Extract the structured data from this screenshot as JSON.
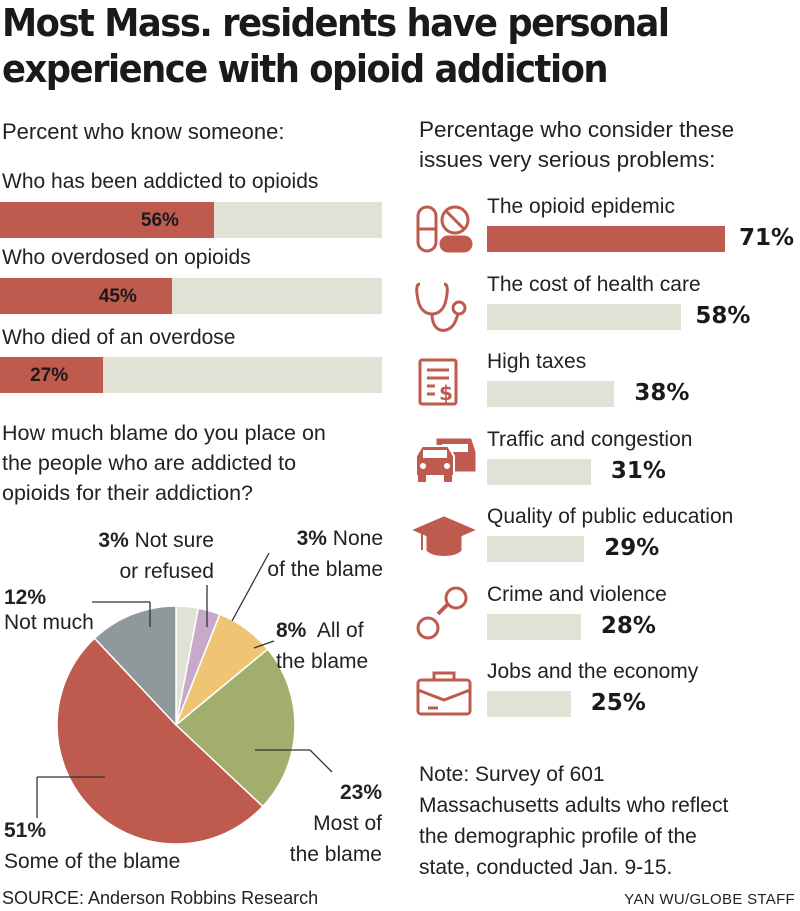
{
  "title_line1": "Most Mass. residents have personal",
  "title_line2": "experience with opioid addiction",
  "know": {
    "heading": "Percent who know someone:",
    "items": [
      {
        "label": "Who has been addicted to opioids",
        "value": 56,
        "value_label": "56%"
      },
      {
        "label": "Who overdosed on opioids",
        "value": 45,
        "value_label": "45%"
      },
      {
        "label": "Who died of an overdose",
        "value": 27,
        "value_label": "27%"
      }
    ]
  },
  "issues": {
    "heading_line1": "Percentage who consider these",
    "heading_line2": "issues very serious problems:",
    "items": [
      {
        "label": "The opioid epidemic",
        "value": 71,
        "value_label": "71%",
        "icon": "pills-icon",
        "highlight": true
      },
      {
        "label": "The cost of health care",
        "value": 58,
        "value_label": "58%",
        "icon": "stethoscope-icon",
        "highlight": false
      },
      {
        "label": "High taxes",
        "value": 38,
        "value_label": "38%",
        "icon": "tax-document-icon",
        "highlight": false
      },
      {
        "label": "Traffic and congestion",
        "value": 31,
        "value_label": "31%",
        "icon": "traffic-cars-icon",
        "highlight": false
      },
      {
        "label": "Quality of public education",
        "value": 29,
        "value_label": "29%",
        "icon": "graduation-cap-icon",
        "highlight": false
      },
      {
        "label": "Crime and violence",
        "value": 28,
        "value_label": "28%",
        "icon": "handcuffs-icon",
        "highlight": false
      },
      {
        "label": "Jobs and the economy",
        "value": 25,
        "value_label": "25%",
        "icon": "briefcase-icon",
        "highlight": false
      }
    ]
  },
  "blame": {
    "question_line1": "How much blame do you place on",
    "question_line2": "the people who are addicted to",
    "question_line3": "opioids for their addiction?",
    "slices": [
      {
        "pct_label": "3%",
        "text1": "Not sure",
        "text2": "or refused",
        "value": 3,
        "color": "#e2e1d6"
      },
      {
        "pct_label": "3%",
        "text1": "None",
        "text2": "of the blame",
        "value": 3,
        "color": "#c7a9c9"
      },
      {
        "pct_label": "8%",
        "text1": "All of",
        "text2": "the blame",
        "value": 8,
        "color": "#efc574"
      },
      {
        "pct_label": "23%",
        "text1": "Most of",
        "text2": "the blame",
        "value": 23,
        "color": "#a2ae6c"
      },
      {
        "pct_label": "51%",
        "text1": "Some of the blame",
        "text2": "",
        "value": 51,
        "color": "#bf5a4e"
      },
      {
        "pct_label": "12%",
        "text1": "Not much",
        "text2": "",
        "value": 12,
        "color": "#8f989a"
      }
    ]
  },
  "colors": {
    "highlight": "#bf5a4e",
    "neutral": "#e2e1d6",
    "icon": "#bf5a4e"
  },
  "note_line1": "Note: Survey of 601",
  "note_line2": "Massachusetts adults who reflect",
  "note_line3": "the demographic profile of the",
  "note_line4": "state, conducted Jan. 9-15.",
  "source": "SOURCE: Anderson Robbins Research",
  "credit": "YAN WU/GLOBE STAFF",
  "chart_data": [
    {
      "type": "bar",
      "title": "Percent who know someone:",
      "categories": [
        "Who has been addicted to opioids",
        "Who overdosed on opioids",
        "Who died of an overdose"
      ],
      "values": [
        56,
        45,
        27
      ],
      "ylim": [
        0,
        100
      ]
    },
    {
      "type": "pie",
      "title": "How much blame do you place on the people who are addicted to opioids for their addiction?",
      "categories": [
        "Not sure or refused",
        "None of the blame",
        "All of the blame",
        "Most of the blame",
        "Some of the blame",
        "Not much"
      ],
      "values": [
        3,
        3,
        8,
        23,
        51,
        12
      ]
    },
    {
      "type": "bar",
      "title": "Percentage who consider these issues very serious problems:",
      "categories": [
        "The opioid epidemic",
        "The cost of health care",
        "High taxes",
        "Traffic and congestion",
        "Quality of public education",
        "Crime and violence",
        "Jobs and the economy"
      ],
      "values": [
        71,
        58,
        38,
        31,
        29,
        28,
        25
      ],
      "ylim": [
        0,
        100
      ]
    }
  ]
}
